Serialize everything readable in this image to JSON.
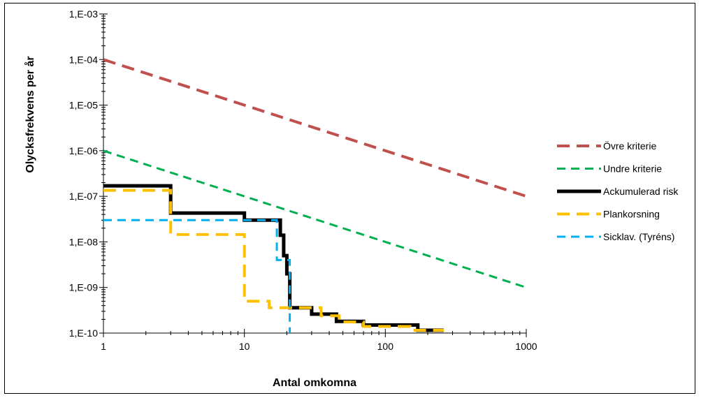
{
  "chart_data": {
    "type": "line",
    "title": "",
    "xlabel": "Antal omkomna",
    "ylabel": "Olycksfrekvens per år",
    "x_scale": "log",
    "y_scale": "log",
    "xlim": [
      1,
      1000
    ],
    "ylim": [
      1e-10,
      0.001
    ],
    "grid": false,
    "legend_position": "right",
    "x_ticks": [
      {
        "value": 1,
        "label": "1"
      },
      {
        "value": 10,
        "label": "10"
      },
      {
        "value": 100,
        "label": "100"
      },
      {
        "value": 1000,
        "label": "1000"
      }
    ],
    "y_ticks": [
      {
        "value": 0.001,
        "label": "1,E-03"
      },
      {
        "value": 0.0001,
        "label": "1,E-04"
      },
      {
        "value": 1e-05,
        "label": "1,E-05"
      },
      {
        "value": 1e-06,
        "label": "1,E-06"
      },
      {
        "value": 1e-07,
        "label": "1,E-07"
      },
      {
        "value": 1e-08,
        "label": "1,E-08"
      },
      {
        "value": 1e-09,
        "label": "1,E-09"
      },
      {
        "value": 1e-10,
        "label": "1,E-10"
      }
    ],
    "series": [
      {
        "name": "Övre kriterie",
        "color": "#C0504D",
        "style": "dashed",
        "width": 4,
        "step": false,
        "points": [
          [
            1,
            0.0001
          ],
          [
            1000,
            1e-07
          ]
        ]
      },
      {
        "name": "Undre kriterie",
        "color": "#00B050",
        "style": "dashed",
        "width": 3,
        "step": false,
        "points": [
          [
            1,
            1e-06
          ],
          [
            1000,
            1e-09
          ]
        ]
      },
      {
        "name": "Ackumulerad risk",
        "color": "#000000",
        "style": "solid",
        "width": 5,
        "step": true,
        "points": [
          [
            1,
            1.7e-07
          ],
          [
            3,
            1.7e-07
          ],
          [
            3,
            4.3e-08
          ],
          [
            10,
            4.3e-08
          ],
          [
            10,
            3e-08
          ],
          [
            18,
            3e-08
          ],
          [
            18,
            1.4e-08
          ],
          [
            19,
            1.4e-08
          ],
          [
            19,
            5e-09
          ],
          [
            20,
            5e-09
          ],
          [
            20,
            2e-09
          ],
          [
            21,
            2e-09
          ],
          [
            21,
            3.6e-10
          ],
          [
            30,
            3.6e-10
          ],
          [
            30,
            2.6e-10
          ],
          [
            45,
            2.6e-10
          ],
          [
            45,
            1.8e-10
          ],
          [
            70,
            1.8e-10
          ],
          [
            70,
            1.5e-10
          ],
          [
            170,
            1.5e-10
          ],
          [
            170,
            1.15e-10
          ],
          [
            260,
            1.15e-10
          ]
        ]
      },
      {
        "name": "Plankorsning",
        "color": "#FFC000",
        "style": "dashed",
        "width": 4,
        "step": true,
        "points": [
          [
            1,
            1.35e-07
          ],
          [
            3,
            1.35e-07
          ],
          [
            3,
            1.45e-08
          ],
          [
            10,
            1.45e-08
          ],
          [
            10,
            5e-10
          ],
          [
            15,
            5e-10
          ],
          [
            15,
            3.6e-10
          ],
          [
            35,
            3.6e-10
          ],
          [
            35,
            2.4e-10
          ],
          [
            47,
            2.4e-10
          ],
          [
            47,
            1.75e-10
          ],
          [
            70,
            1.75e-10
          ],
          [
            70,
            1.4e-10
          ],
          [
            150,
            1.4e-10
          ],
          [
            150,
            1.15e-10
          ],
          [
            260,
            1.15e-10
          ]
        ]
      },
      {
        "name": "Sicklav. (Tyréns)",
        "color": "#00B0F0",
        "style": "dashed",
        "width": 3,
        "step": true,
        "points": [
          [
            1,
            3e-08
          ],
          [
            17,
            3e-08
          ],
          [
            17,
            4e-09
          ],
          [
            21,
            4e-09
          ],
          [
            21,
            1e-10
          ]
        ]
      }
    ]
  }
}
